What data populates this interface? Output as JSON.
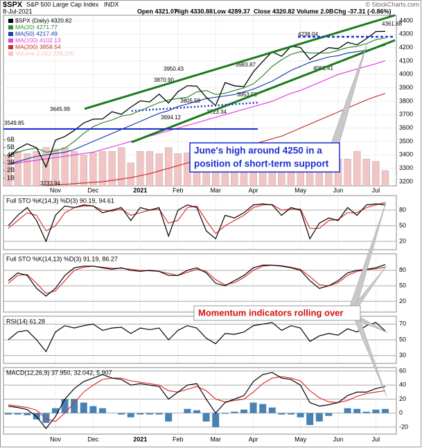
{
  "header": {
    "symbol": "$SPX",
    "name": "S&P 500 Large Cap Index",
    "exchange": "INDX",
    "date": "8-Jul-2021",
    "watermark": "© StockCharts.com",
    "quote": [
      "Open 4321.07",
      "High 4330.88",
      "Low 4289.37",
      "Close 4320.82",
      "Volume 2.0B",
      "Chg -37.31 (-0.86%)"
    ]
  },
  "callouts": [
    [
      "June's high around 4250 in a",
      "position of short-term support"
    ],
    [
      "Momentum indicators rolling over"
    ]
  ],
  "chart_data": [
    {
      "type": "line",
      "categories": [
        null,
        null,
        null,
        null,
        null,
        "Nov",
        null,
        null,
        null,
        "Dec",
        null,
        null,
        null,
        null,
        "2021",
        null,
        null,
        null,
        "Feb",
        null,
        null,
        null,
        "Mar",
        null,
        null,
        null,
        "Apr",
        null,
        null,
        null,
        null,
        "May",
        null,
        null,
        null,
        "Jun",
        null,
        null,
        null,
        "Jul",
        null
      ],
      "ylim": [
        3200,
        4400
      ],
      "yticks": [
        3200,
        3300,
        3400,
        3500,
        3600,
        3700,
        3800,
        3900,
        4000,
        4100,
        4200,
        4300,
        4400
      ],
      "y2lim": [
        0,
        6.5
      ],
      "y2ticks": [
        {
          "value": 1,
          "label": "1B"
        },
        {
          "value": 2,
          "label": "2B"
        },
        {
          "value": 3,
          "label": "3B"
        },
        {
          "value": 4,
          "label": "4B"
        },
        {
          "value": 5,
          "label": "5B"
        },
        {
          "value": 6,
          "label": "6B"
        }
      ],
      "annotations": [
        "3549.85",
        "3645.99",
        "3870.90",
        "3950.43",
        "3983.87",
        "4238.04",
        "4361.88",
        "3694.12",
        "3805.59",
        "3723.34",
        "3853.50",
        "4061.41",
        "3233.94"
      ],
      "series": [
        {
          "name": "Volume 2,042,339,200",
          "type": "bar",
          "axis": "y2",
          "color": "#f2c4c4",
          "values": [
            4,
            4.5,
            4.2,
            4.5,
            5,
            4.8,
            5,
            4.5,
            4,
            4.3,
            4.5,
            4.5,
            5,
            3,
            4.5,
            4.5,
            4.2,
            5,
            4.2,
            4.3,
            4,
            4.5,
            5.5,
            5,
            4.5,
            4.3,
            3.5,
            3.8,
            3.8,
            4,
            4.2,
            4.5,
            5,
            4.3,
            3.8,
            3.5,
            3.5,
            4.5,
            3.5,
            3.2,
            2.0
          ]
        },
        {
          "name": "MA(200) 3858.54",
          "color": "#c83232",
          "values": [
            3150,
            3155,
            3160,
            3165,
            3170,
            3175,
            3180,
            3185,
            3190,
            3195,
            3200,
            3210,
            3220,
            3230,
            3245,
            3260,
            3280,
            3300,
            3320,
            3340,
            3360,
            3380,
            3400,
            3420,
            3440,
            3460,
            3480,
            3500,
            3520,
            3540,
            3570,
            3600,
            3630,
            3660,
            3690,
            3720,
            3750,
            3780,
            3810,
            3835,
            3858.54
          ]
        },
        {
          "name": "MA(100) 4102.13",
          "color": "#e040e0",
          "values": [
            3330,
            3340,
            3350,
            3360,
            3370,
            3380,
            3390,
            3400,
            3410,
            3420,
            3440,
            3460,
            3480,
            3500,
            3520,
            3540,
            3560,
            3580,
            3600,
            3620,
            3640,
            3660,
            3680,
            3700,
            3720,
            3740,
            3760,
            3780,
            3800,
            3830,
            3860,
            3880,
            3910,
            3940,
            3970,
            4000,
            4020,
            4040,
            4060,
            4080,
            4102.13
          ]
        },
        {
          "name": "MA(50) 4217.49",
          "color": "#2040b0",
          "values": [
            3330,
            3350,
            3370,
            3390,
            3400,
            3410,
            3420,
            3440,
            3470,
            3500,
            3530,
            3560,
            3590,
            3620,
            3650,
            3680,
            3710,
            3730,
            3760,
            3780,
            3800,
            3820,
            3830,
            3840,
            3850,
            3870,
            3890,
            3920,
            3950,
            3990,
            4030,
            4060,
            4090,
            4110,
            4130,
            4140,
            4160,
            4170,
            4180,
            4200,
            4217.49
          ]
        },
        {
          "name": "MA(20) 4271.77",
          "color": "#2e8b2e",
          "values": [
            3400,
            3420,
            3440,
            3450,
            3420,
            3430,
            3450,
            3500,
            3560,
            3610,
            3640,
            3660,
            3690,
            3700,
            3730,
            3760,
            3790,
            3810,
            3820,
            3830,
            3870,
            3880,
            3850,
            3860,
            3880,
            3900,
            3930,
            3990,
            4060,
            4110,
            4150,
            4170,
            4160,
            4160,
            4160,
            4180,
            4200,
            4210,
            4230,
            4260,
            4271.77
          ]
        },
        {
          "name": "$SPX (Daily) 4320.82",
          "color": "#000000",
          "values": [
            3380,
            3446,
            3483,
            3453,
            3310,
            3510,
            3537,
            3582,
            3638,
            3666,
            3668,
            3722,
            3703,
            3756,
            3803,
            3795,
            3853,
            3787,
            3871,
            3916,
            3913,
            3829,
            3768,
            3939,
            3915,
            3909,
            4019,
            4097,
            4170,
            4135,
            4211,
            4201,
            4112,
            4159,
            4200,
            4192,
            4239,
            4221,
            4266,
            4320,
            4320.82
          ]
        }
      ]
    },
    {
      "type": "line",
      "title": "Full STO %K(14,3) %D(3) 90.19, 94.61",
      "ylim": [
        4,
        108
      ],
      "yticks": [
        20,
        50,
        80
      ],
      "series": [
        {
          "name": "%D(3)",
          "color": "#e03030",
          "values": [
            45,
            60,
            75,
            70,
            40,
            50,
            75,
            85,
            88,
            88,
            80,
            78,
            82,
            70,
            75,
            80,
            82,
            55,
            60,
            85,
            88,
            60,
            35,
            50,
            60,
            70,
            85,
            90,
            91,
            80,
            82,
            82,
            45,
            45,
            60,
            62,
            75,
            75,
            85,
            90,
            94.61
          ]
        },
        {
          "name": "%K(14,3)",
          "color": "#000000",
          "values": [
            50,
            70,
            85,
            60,
            20,
            70,
            88,
            85,
            90,
            88,
            75,
            80,
            85,
            60,
            85,
            80,
            85,
            30,
            80,
            90,
            85,
            40,
            25,
            70,
            65,
            75,
            90,
            92,
            90,
            70,
            85,
            80,
            25,
            55,
            65,
            60,
            85,
            70,
            90,
            92,
            90.19
          ]
        }
      ]
    },
    {
      "type": "line",
      "title": "Full STO %K(14,13) %D(3) 91.19, 86.27",
      "ylim": [
        -1,
        112
      ],
      "yticks": [
        20,
        50,
        80
      ],
      "series": [
        {
          "name": "%D(3)",
          "color": "#e03030",
          "values": [
            55,
            70,
            72,
            55,
            35,
            40,
            60,
            80,
            86,
            88,
            86,
            84,
            84,
            82,
            80,
            79,
            78,
            74,
            70,
            76,
            82,
            78,
            62,
            52,
            56,
            66,
            80,
            88,
            90,
            89,
            86,
            82,
            68,
            52,
            50,
            56,
            70,
            78,
            81,
            83,
            86.27
          ]
        },
        {
          "name": "%K(14,13)",
          "color": "#000000",
          "values": [
            60,
            75,
            70,
            45,
            30,
            45,
            70,
            85,
            88,
            88,
            85,
            82,
            85,
            80,
            78,
            80,
            78,
            70,
            70,
            80,
            85,
            75,
            55,
            50,
            60,
            70,
            85,
            90,
            90,
            88,
            85,
            80,
            60,
            45,
            50,
            60,
            75,
            80,
            82,
            85,
            91.19
          ]
        }
      ]
    },
    {
      "type": "line",
      "title": "RSI(14) 61.28",
      "ylim": [
        20,
        80
      ],
      "yticks": [
        30,
        50,
        70
      ],
      "series": [
        {
          "name": "RSI(14)",
          "color": "#000000",
          "values": [
            50,
            60,
            62,
            50,
            35,
            60,
            68,
            65,
            68,
            70,
            62,
            65,
            66,
            58,
            65,
            63,
            65,
            50,
            62,
            68,
            65,
            52,
            45,
            58,
            57,
            60,
            68,
            70,
            72,
            62,
            68,
            65,
            48,
            55,
            58,
            56,
            64,
            60,
            68,
            72,
            61.28
          ]
        }
      ]
    },
    {
      "type": "line",
      "title": "MACD(12,26,9) 37.950, 32.042, 5.907",
      "ylim": [
        -30,
        65
      ],
      "yticks": [
        -20,
        0,
        20,
        40,
        60
      ],
      "categories": [
        null,
        null,
        null,
        null,
        null,
        "Nov",
        null,
        null,
        null,
        "Dec",
        null,
        null,
        null,
        null,
        "2021",
        null,
        null,
        null,
        "Feb",
        null,
        null,
        null,
        "Mar",
        null,
        null,
        null,
        "Apr",
        null,
        null,
        null,
        null,
        "May",
        null,
        null,
        null,
        "Jun",
        null,
        null,
        null,
        "Jul",
        null
      ],
      "series": [
        {
          "name": "Histogram",
          "type": "bar",
          "color": "#4682b4",
          "values": [
            -2,
            -2,
            -3,
            -9,
            -14,
            7,
            20,
            20,
            15,
            10,
            7,
            0,
            -2,
            -6,
            -2,
            -2,
            -2,
            -12,
            0,
            6,
            4,
            -12,
            -20,
            -1,
            2,
            5,
            15,
            13,
            8,
            -2,
            -2,
            -6,
            -17,
            -12,
            -4,
            0,
            7,
            6,
            2,
            5,
            5.907
          ]
        },
        {
          "name": "Signal",
          "color": "#e03030",
          "values": [
            12,
            10,
            8,
            4,
            -8,
            -12,
            0,
            15,
            30,
            40,
            48,
            50,
            50,
            46,
            44,
            42,
            40,
            32,
            30,
            34,
            38,
            32,
            20,
            16,
            18,
            20,
            30,
            42,
            50,
            52,
            50,
            46,
            32,
            22,
            16,
            15,
            18,
            24,
            28,
            30,
            32.042
          ]
        },
        {
          "name": "MACD",
          "color": "#000000",
          "values": [
            10,
            8,
            5,
            -5,
            -22,
            -5,
            20,
            35,
            45,
            50,
            55,
            50,
            48,
            40,
            42,
            40,
            38,
            20,
            30,
            40,
            42,
            20,
            0,
            15,
            20,
            25,
            45,
            55,
            58,
            50,
            48,
            40,
            15,
            10,
            12,
            15,
            25,
            30,
            30,
            35,
            37.95
          ]
        }
      ]
    }
  ]
}
